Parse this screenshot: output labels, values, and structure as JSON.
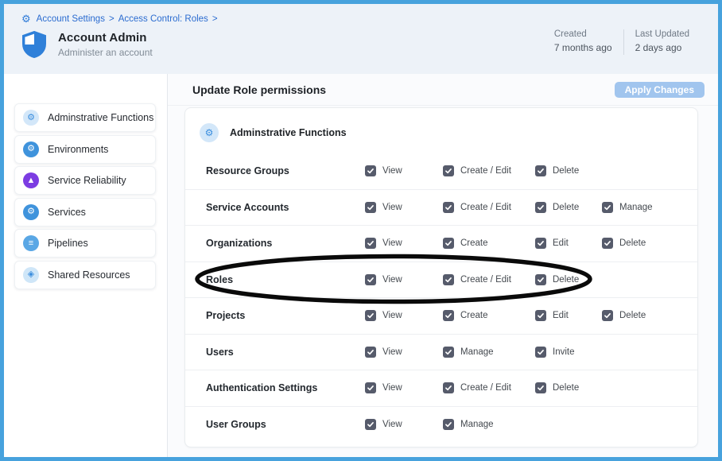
{
  "page": {
    "border_color": "#47a2dd"
  },
  "breadcrumb": {
    "icon": "gear-icon",
    "items": [
      "Account Settings",
      "Access Control: Roles"
    ],
    "separator": ">"
  },
  "header": {
    "title": "Account Admin",
    "subtitle": "Administer an account",
    "icon": "shield-icon",
    "meta": [
      {
        "label": "Created",
        "value": "7 months ago"
      },
      {
        "label": "Last Updated",
        "value": "2 days ago"
      }
    ]
  },
  "sidebar": {
    "items": [
      {
        "label": "Adminstrative Functions",
        "icon": "gear-icon",
        "glyph": "⚙",
        "bg": "#d3e7f9",
        "fg": "#3b8ede"
      },
      {
        "label": "Environments",
        "icon": "environments-icon",
        "glyph": "⚙",
        "bg": "#3f93dc",
        "fg": "#ffffff"
      },
      {
        "label": "Service Reliability",
        "icon": "service-reliability-icon",
        "glyph": "▲",
        "bg": "#7c3ce2",
        "fg": "#ffffff"
      },
      {
        "label": "Services",
        "icon": "services-icon",
        "glyph": "⚙",
        "bg": "#3f93dc",
        "fg": "#ffffff"
      },
      {
        "label": "Pipelines",
        "icon": "pipelines-icon",
        "glyph": "≡",
        "bg": "#5aa7e5",
        "fg": "#ffffff"
      },
      {
        "label": "Shared Resources",
        "icon": "shared-resources-icon",
        "glyph": "◈",
        "bg": "#cfe6f8",
        "fg": "#3b8ede"
      }
    ]
  },
  "main": {
    "title": "Update Role permissions",
    "apply_button_label": "Apply Changes",
    "apply_button_color": "#a1c5ee",
    "section": {
      "label": "Adminstrative Functions",
      "icon": "gear-icon",
      "glyph": "⚙",
      "bg": "#d3e7f9",
      "fg": "#3b8ede"
    },
    "checkbox_color": "#565b6b",
    "permission_rows": [
      {
        "label": "Resource Groups",
        "perms": [
          {
            "label": "View",
            "checked": true
          },
          {
            "label": "Create / Edit",
            "checked": true
          },
          {
            "label": "Delete",
            "checked": true
          }
        ]
      },
      {
        "label": "Service Accounts",
        "perms": [
          {
            "label": "View",
            "checked": true
          },
          {
            "label": "Create / Edit",
            "checked": true
          },
          {
            "label": "Delete",
            "checked": true
          },
          {
            "label": "Manage",
            "checked": true
          }
        ]
      },
      {
        "label": "Organizations",
        "perms": [
          {
            "label": "View",
            "checked": true
          },
          {
            "label": "Create",
            "checked": true
          },
          {
            "label": "Edit",
            "checked": true
          },
          {
            "label": "Delete",
            "checked": true
          }
        ]
      },
      {
        "label": "Roles",
        "annotated": true,
        "perms": [
          {
            "label": "View",
            "checked": true
          },
          {
            "label": "Create / Edit",
            "checked": true
          },
          {
            "label": "Delete",
            "checked": true
          }
        ]
      },
      {
        "label": "Projects",
        "perms": [
          {
            "label": "View",
            "checked": true
          },
          {
            "label": "Create",
            "checked": true
          },
          {
            "label": "Edit",
            "checked": true
          },
          {
            "label": "Delete",
            "checked": true
          }
        ]
      },
      {
        "label": "Users",
        "perms": [
          {
            "label": "View",
            "checked": true
          },
          {
            "label": "Manage",
            "checked": true
          },
          {
            "label": "Invite",
            "checked": true
          }
        ]
      },
      {
        "label": "Authentication Settings",
        "perms": [
          {
            "label": "View",
            "checked": true
          },
          {
            "label": "Create / Edit",
            "checked": true
          },
          {
            "label": "Delete",
            "checked": true
          }
        ]
      },
      {
        "label": "User Groups",
        "perms": [
          {
            "label": "View",
            "checked": true
          },
          {
            "label": "Manage",
            "checked": true
          }
        ]
      }
    ]
  },
  "annotation": {
    "shape": "ellipse",
    "color": "#0a0a0a",
    "target": "Roles row"
  }
}
